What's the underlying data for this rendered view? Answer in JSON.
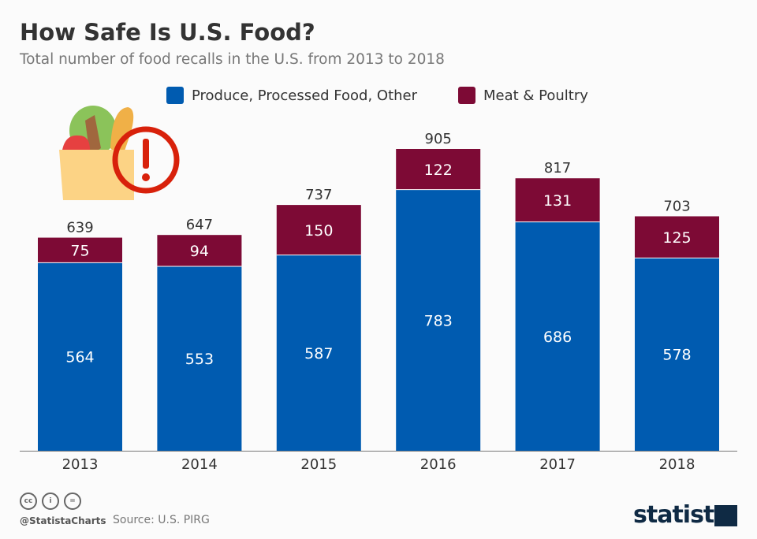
{
  "header": {
    "title": "How Safe Is U.S. Food?",
    "subtitle": "Total number of food recalls in the U.S. from 2013 to 2018"
  },
  "chart_data": {
    "type": "bar",
    "stacked": true,
    "categories": [
      "2013",
      "2014",
      "2015",
      "2016",
      "2017",
      "2018"
    ],
    "series": [
      {
        "name": "Produce, Processed Food, Other",
        "color": "#005bb0",
        "values": [
          564,
          553,
          587,
          783,
          686,
          578
        ]
      },
      {
        "name": "Meat & Poultry",
        "color": "#7d0a35",
        "values": [
          75,
          94,
          150,
          122,
          131,
          125
        ]
      }
    ],
    "totals": [
      "639",
      "647",
      "737",
      "905",
      "817",
      "703"
    ],
    "ylim": [
      0,
      905
    ],
    "grid": false,
    "legend_position": "top"
  },
  "footer": {
    "handle": "@StatistaCharts",
    "source": "Source: U.S. PIRG",
    "logo": "statista",
    "license_icons": [
      "cc-icon",
      "by-icon",
      "nd-icon"
    ]
  }
}
